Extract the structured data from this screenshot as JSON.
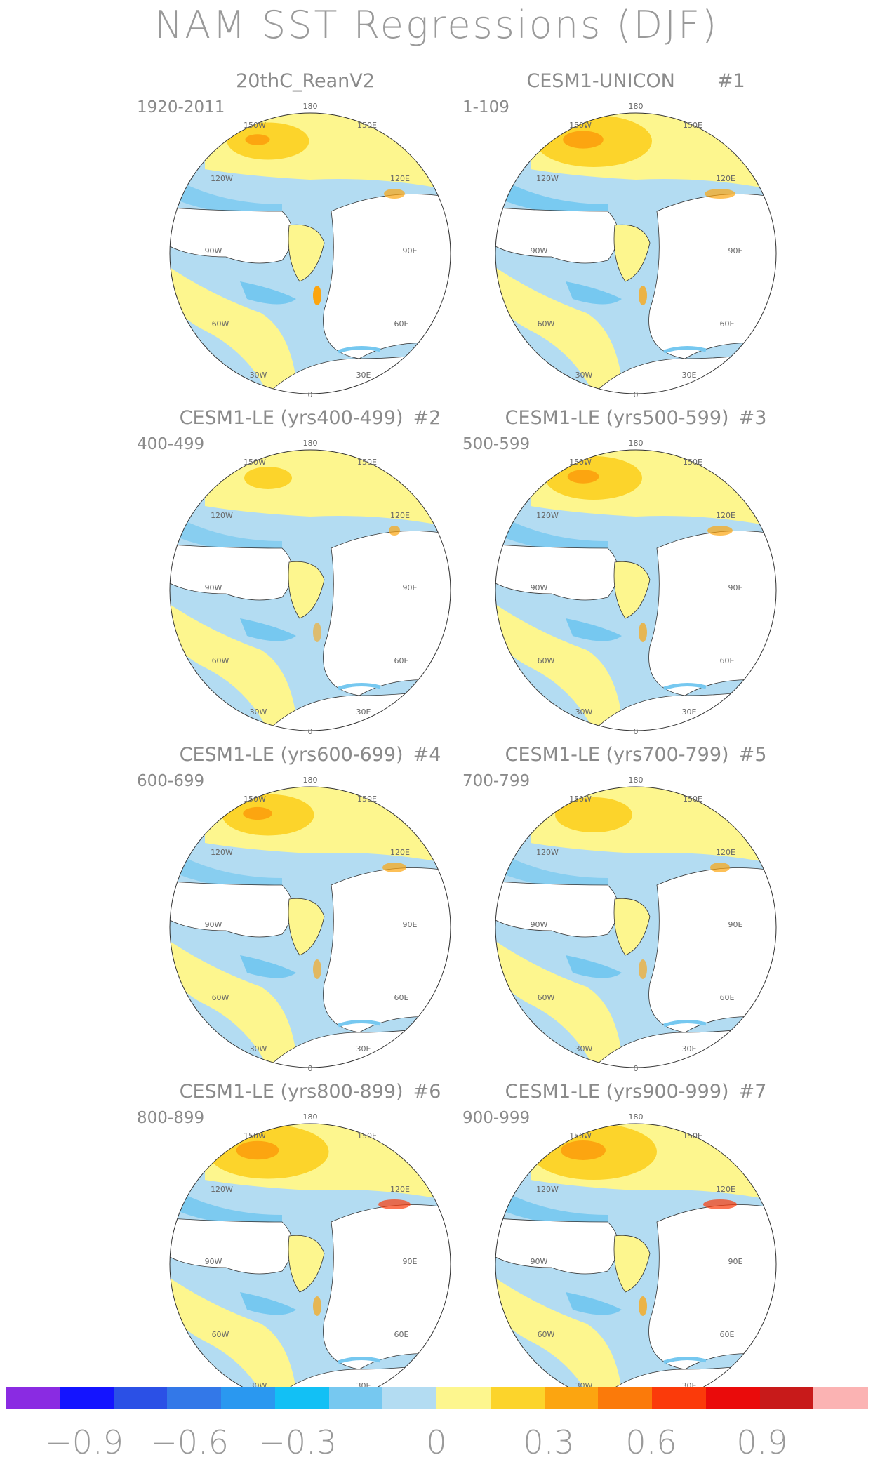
{
  "title": "NAM SST Regressions (DJF)",
  "panels": [
    {
      "title": "20thC_ReanV2",
      "num": "",
      "period": "1920-2011"
    },
    {
      "title": "CESM1-UNICON",
      "num": "#1",
      "period": "1-109"
    },
    {
      "title": "CESM1-LE (yrs400-499)",
      "num": "#2",
      "period": "400-499"
    },
    {
      "title": "CESM1-LE (yrs500-599)",
      "num": "#3",
      "period": "500-599"
    },
    {
      "title": "CESM1-LE (yrs600-699)",
      "num": "#4",
      "period": "600-699"
    },
    {
      "title": "CESM1-LE (yrs700-799)",
      "num": "#5",
      "period": "700-799"
    },
    {
      "title": "CESM1-LE (yrs800-899)",
      "num": "#6",
      "period": "800-899"
    },
    {
      "title": "CESM1-LE (yrs900-999)",
      "num": "#7",
      "period": "900-999"
    }
  ],
  "longitude_labels": {
    "top": "180",
    "top_left": "150W",
    "top_right": "150E",
    "upper_left": "120W",
    "upper_right": "120E",
    "left": "90W",
    "right": "90E",
    "lower_left": "60W",
    "lower_right": "60E",
    "bottom_left": "30W",
    "bottom_right": "30E",
    "bottom": "0"
  },
  "colorbar": {
    "colors": [
      "#8a2be2",
      "#1414ff",
      "#2b50e6",
      "#3378e8",
      "#2a98f0",
      "#12c0f5",
      "#76c8f0",
      "#b3dcf2",
      "#fdf68e",
      "#fcd42b",
      "#fca510",
      "#fb7a0a",
      "#fb3a0a",
      "#ea0b0b",
      "#c81a1a",
      "#fbb3b3"
    ],
    "tick_labels": [
      "−0.9",
      "−0.6",
      "−0.3",
      "0",
      "0.3",
      "0.6",
      "0.9"
    ]
  }
}
